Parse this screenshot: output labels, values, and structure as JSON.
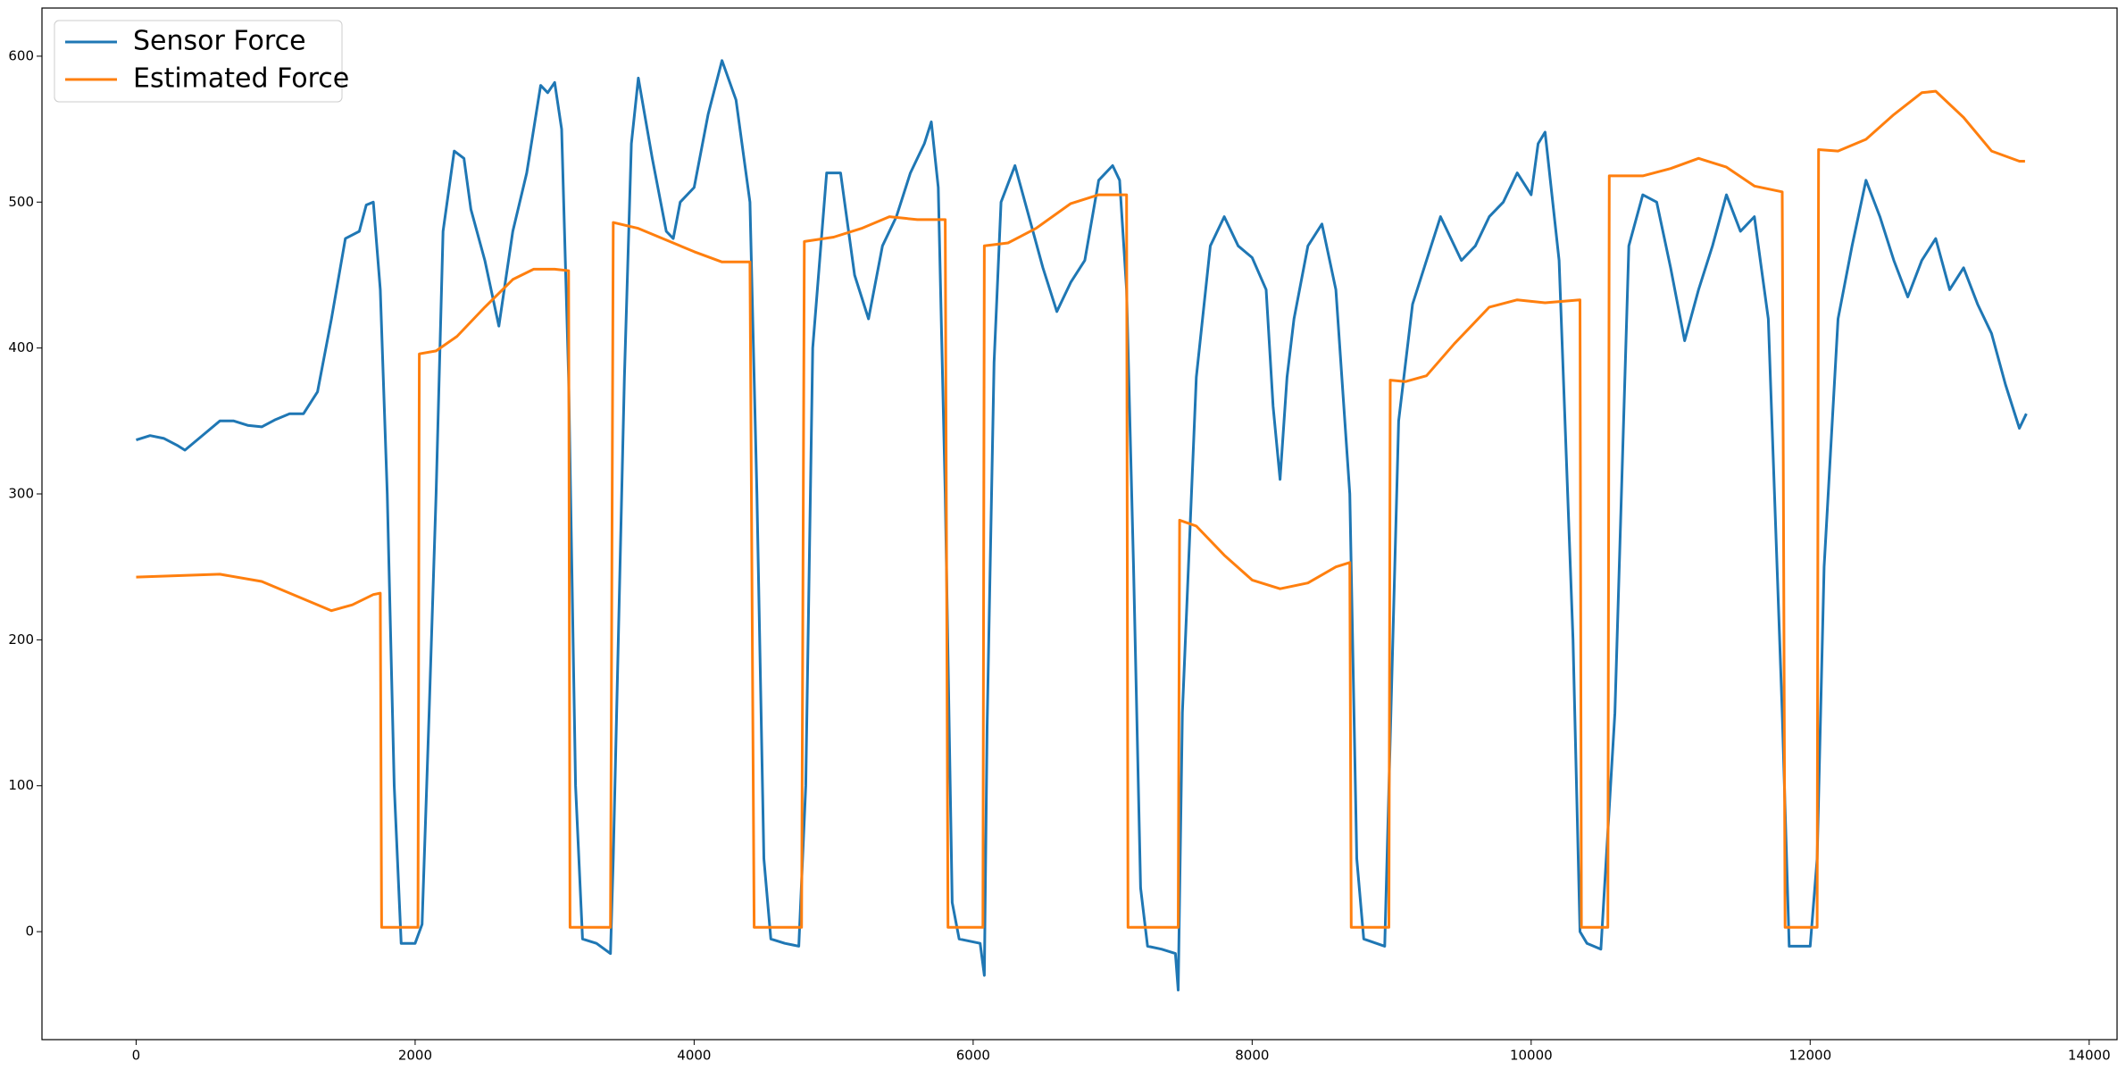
{
  "chart_data": {
    "type": "line",
    "xlim": [
      -675,
      14200
    ],
    "ylim": [
      -74,
      633
    ],
    "xticks": [
      0,
      2000,
      4000,
      6000,
      8000,
      10000,
      12000,
      14000
    ],
    "yticks": [
      0,
      100,
      200,
      300,
      400,
      500,
      600
    ],
    "legend": "upper left",
    "series": [
      {
        "name": "Sensor Force",
        "color": "#1f77b4",
        "x": [
          0,
          100,
          200,
          300,
          350,
          500,
          600,
          700,
          800,
          900,
          1000,
          1100,
          1200,
          1300,
          1400,
          1500,
          1600,
          1650,
          1700,
          1750,
          1800,
          1850,
          1900,
          2000,
          2050,
          2100,
          2150,
          2200,
          2280,
          2350,
          2400,
          2500,
          2600,
          2700,
          2800,
          2900,
          2950,
          3000,
          3050,
          3100,
          3150,
          3200,
          3300,
          3400,
          3420,
          3500,
          3550,
          3600,
          3700,
          3800,
          3850,
          3900,
          4000,
          4100,
          4200,
          4300,
          4400,
          4450,
          4500,
          4550,
          4650,
          4750,
          4800,
          4850,
          4950,
          5050,
          5150,
          5250,
          5350,
          5450,
          5550,
          5650,
          5700,
          5750,
          5800,
          5850,
          5900,
          6050,
          6080,
          6100,
          6150,
          6200,
          6300,
          6400,
          6500,
          6600,
          6700,
          6800,
          6900,
          7000,
          7050,
          7100,
          7150,
          7200,
          7250,
          7350,
          7450,
          7470,
          7500,
          7600,
          7700,
          7800,
          7900,
          8000,
          8100,
          8150,
          8200,
          8250,
          8300,
          8400,
          8500,
          8600,
          8700,
          8750,
          8800,
          8950,
          9000,
          9050,
          9150,
          9250,
          9350,
          9500,
          9600,
          9700,
          9800,
          9900,
          10000,
          10050,
          10100,
          10200,
          10300,
          10350,
          10400,
          10500,
          10600,
          10700,
          10800,
          10900,
          11000,
          11100,
          11200,
          11300,
          11400,
          11500,
          11600,
          11700,
          11800,
          11850,
          12000,
          12050,
          12100,
          12200,
          12300,
          12400,
          12500,
          12600,
          12700,
          12800,
          12900,
          13000,
          13100,
          13200,
          13300,
          13400,
          13500,
          13550
        ],
        "values": [
          337,
          340,
          338,
          333,
          330,
          342,
          350,
          350,
          347,
          346,
          351,
          355,
          355,
          370,
          420,
          475,
          480,
          498,
          500,
          440,
          300,
          100,
          -8,
          -8,
          5,
          150,
          300,
          480,
          535,
          530,
          495,
          460,
          415,
          480,
          520,
          580,
          575,
          582,
          550,
          380,
          100,
          -5,
          -8,
          -15,
          50,
          380,
          540,
          585,
          530,
          480,
          475,
          500,
          510,
          560,
          597,
          570,
          500,
          300,
          50,
          -5,
          -8,
          -10,
          100,
          400,
          520,
          520,
          450,
          420,
          470,
          490,
          520,
          540,
          555,
          510,
          300,
          20,
          -5,
          -8,
          -30,
          140,
          390,
          500,
          525,
          490,
          455,
          425,
          445,
          460,
          515,
          525,
          515,
          440,
          250,
          30,
          -10,
          -12,
          -15,
          -40,
          150,
          380,
          470,
          490,
          470,
          462,
          440,
          360,
          310,
          380,
          420,
          470,
          485,
          440,
          300,
          50,
          -5,
          -10,
          170,
          350,
          430,
          460,
          490,
          460,
          470,
          490,
          500,
          520,
          505,
          540,
          548,
          460,
          200,
          0,
          -8,
          -12,
          150,
          470,
          505,
          500,
          455,
          405,
          440,
          470,
          505,
          480,
          490,
          420,
          150,
          -10,
          -10,
          50,
          250,
          420,
          470,
          515,
          490,
          460,
          435,
          460,
          475,
          440,
          455,
          430,
          410,
          375,
          345,
          355
        ]
      },
      {
        "name": "Estimated Force",
        "color": "#ff7f0e",
        "x": [
          0,
          300,
          600,
          900,
          1200,
          1400,
          1550,
          1700,
          1750,
          1760,
          2020,
          2030,
          2150,
          2300,
          2500,
          2700,
          2850,
          3000,
          3100,
          3110,
          3400,
          3420,
          3600,
          3800,
          4000,
          4200,
          4400,
          4430,
          4770,
          4790,
          5000,
          5200,
          5400,
          5600,
          5800,
          5820,
          6070,
          6080,
          6250,
          6450,
          6700,
          6900,
          7100,
          7110,
          7470,
          7480,
          7600,
          7800,
          8000,
          8200,
          8400,
          8600,
          8700,
          8710,
          8980,
          8990,
          9100,
          9250,
          9450,
          9700,
          9900,
          10100,
          10350,
          10360,
          10550,
          10560,
          10800,
          11000,
          11200,
          11400,
          11600,
          11800,
          11820,
          12050,
          12060,
          12200,
          12400,
          12600,
          12800,
          12900,
          13100,
          13300,
          13500,
          13540
        ],
        "values": [
          243,
          244,
          245,
          240,
          228,
          220,
          224,
          231,
          232,
          3,
          3,
          396,
          398,
          408,
          428,
          447,
          454,
          454,
          453,
          3,
          3,
          486,
          482,
          474,
          466,
          459,
          459,
          3,
          3,
          473,
          476,
          482,
          490,
          488,
          488,
          3,
          3,
          470,
          472,
          482,
          499,
          505,
          505,
          3,
          3,
          282,
          278,
          258,
          241,
          235,
          239,
          250,
          253,
          3,
          3,
          378,
          377,
          381,
          403,
          428,
          433,
          431,
          433,
          3,
          3,
          518,
          518,
          523,
          530,
          524,
          511,
          507,
          3,
          3,
          536,
          535,
          543,
          560,
          575,
          576,
          558,
          535,
          528,
          528
        ]
      }
    ]
  }
}
